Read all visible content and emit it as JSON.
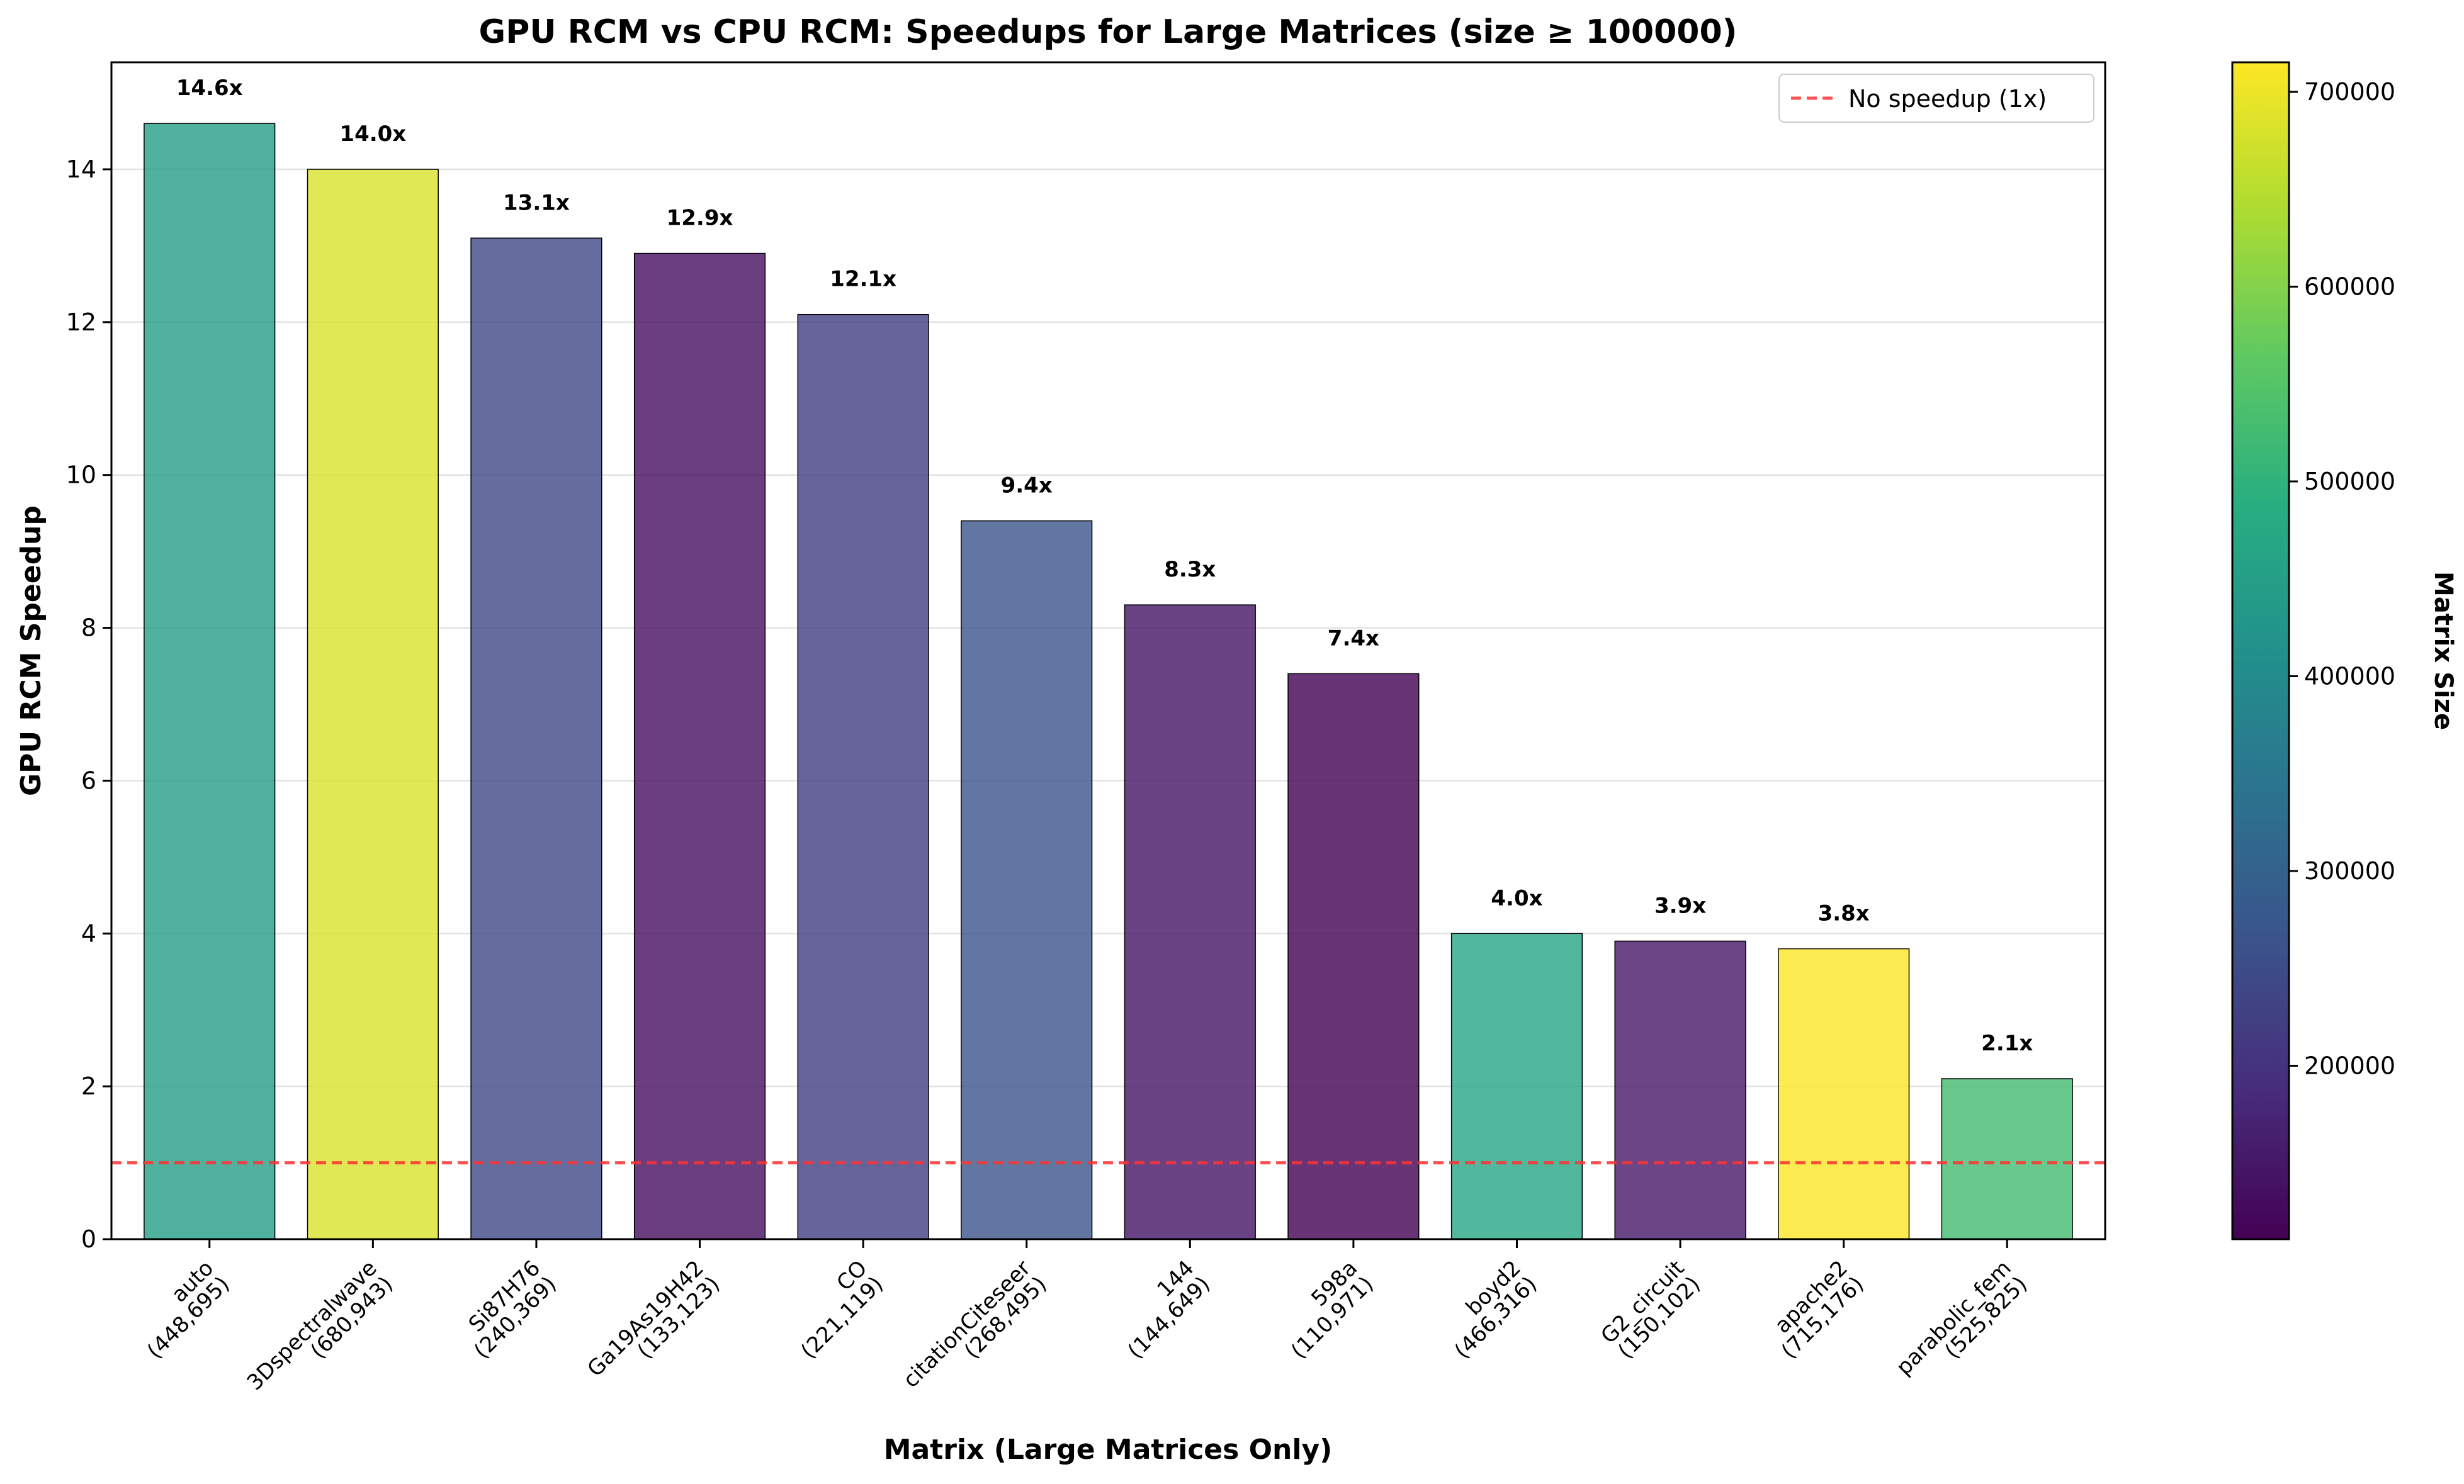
{
  "chart_data": {
    "type": "bar",
    "title": "GPU RCM vs CPU RCM: Speedups for Large Matrices (size ≥ 100000)",
    "xlabel": "Matrix (Large Matrices Only)",
    "ylabel": "GPU RCM Speedup",
    "ylim": [
      0,
      15.4
    ],
    "yticks": [
      0,
      2,
      4,
      6,
      8,
      10,
      12,
      14
    ],
    "grid": "horizontal",
    "categories": [
      {
        "name": "auto",
        "size_label": "(448,695)"
      },
      {
        "name": "3Dspectralwave",
        "size_label": "(680,943)"
      },
      {
        "name": "Si87H76",
        "size_label": "(240,369)"
      },
      {
        "name": "Ga19As19H42",
        "size_label": "(133,123)"
      },
      {
        "name": "CO",
        "size_label": "(221,119)"
      },
      {
        "name": "citationCiteseer",
        "size_label": "(268,495)"
      },
      {
        "name": "144",
        "size_label": "(144,649)"
      },
      {
        "name": "598a",
        "size_label": "(110,971)"
      },
      {
        "name": "boyd2",
        "size_label": "(466,316)"
      },
      {
        "name": "G2_circuit",
        "size_label": "(150,102)"
      },
      {
        "name": "apache2",
        "size_label": "(715,176)"
      },
      {
        "name": "parabolic_fem",
        "size_label": "(525,825)"
      }
    ],
    "values": [
      14.6,
      14.0,
      13.1,
      12.9,
      12.1,
      9.4,
      8.3,
      7.4,
      4.0,
      3.9,
      3.8,
      2.1
    ],
    "value_labels": [
      "14.6x",
      "14.0x",
      "13.1x",
      "12.9x",
      "12.1x",
      "9.4x",
      "8.3x",
      "7.4x",
      "4.0x",
      "3.9x",
      "3.8x",
      "2.1x"
    ],
    "matrix_sizes": [
      448695,
      680943,
      240369,
      133123,
      221119,
      268495,
      144649,
      110971,
      466316,
      150102,
      715176,
      525825
    ],
    "reference_line": {
      "value": 1,
      "label": "No speedup (1x)",
      "color": "#ff3333",
      "style": "dashed"
    },
    "legend": {
      "placement": "top-right"
    },
    "colorbar": {
      "label": "Matrix Size",
      "colormap": "viridis",
      "range": [
        110971,
        715176
      ],
      "ticks": [
        200000,
        300000,
        400000,
        500000,
        600000,
        700000
      ],
      "tick_labels": [
        "200000",
        "300000",
        "400000",
        "500000",
        "600000",
        "700000"
      ]
    }
  }
}
